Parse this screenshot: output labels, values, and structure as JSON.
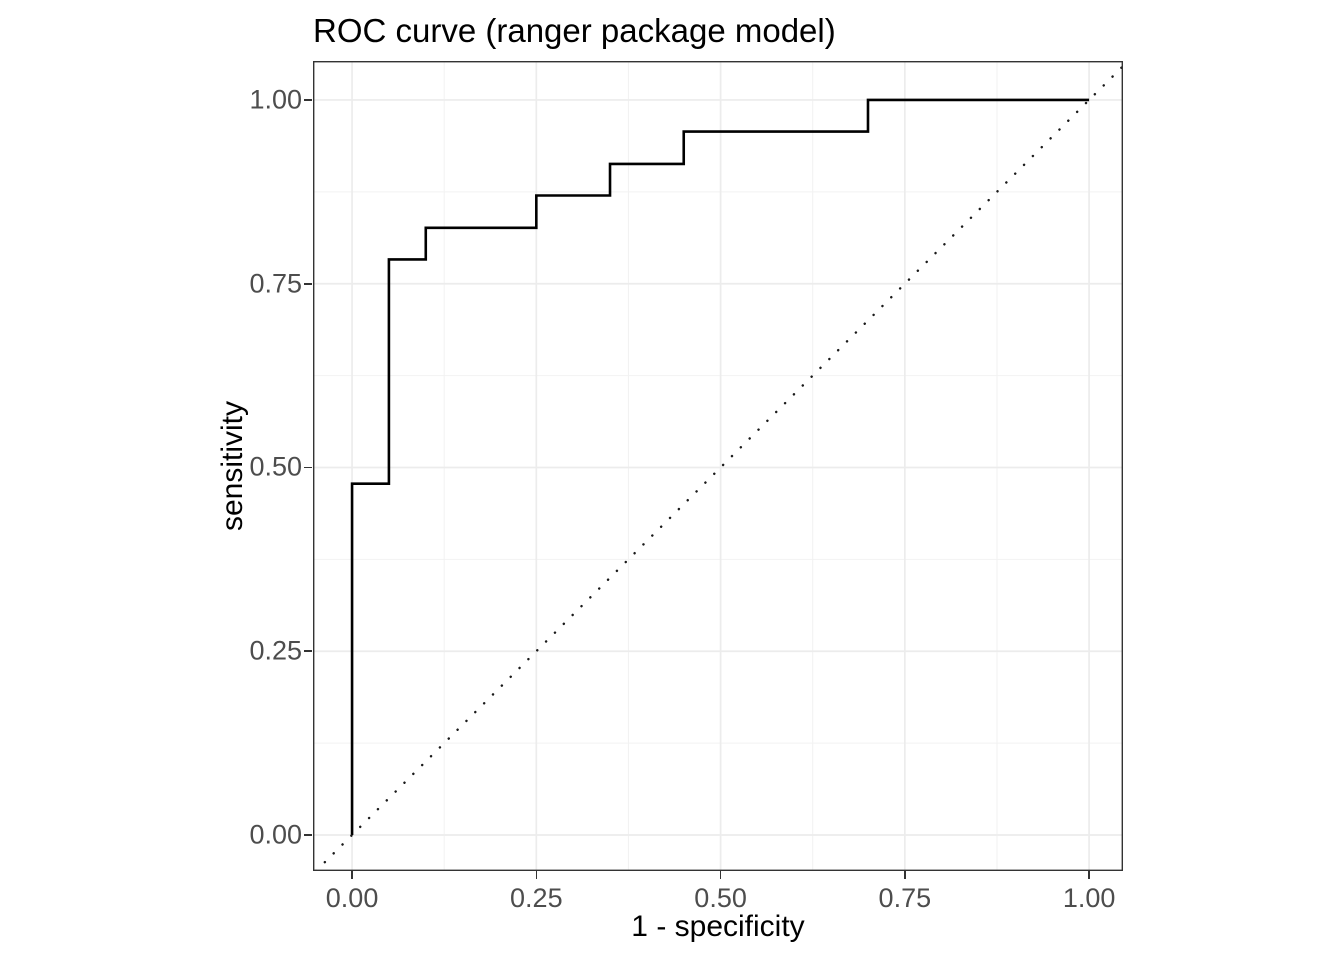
{
  "colors": {
    "background": "#FFFFFF",
    "panel_background": "#FFFFFF",
    "panel_border": "#333333",
    "grid_major": "#ECECEC",
    "grid_minor": "#F2F2F2",
    "tick_mark": "#333333",
    "tick_label": "#4D4D4D",
    "title_text": "#000000",
    "roc_line": "#000000",
    "diagonal_line": "#1A1A1A"
  },
  "chart_data": {
    "type": "line",
    "title": "ROC curve (ranger package model)",
    "xlabel": "1 - specificity",
    "ylabel": "sensitivity",
    "xlim": [
      -0.053,
      1.046
    ],
    "ylim": [
      -0.049,
      1.053
    ],
    "grid": "on",
    "legend": "none",
    "x_ticks": {
      "values": [
        0,
        0.25,
        0.5,
        0.75,
        1
      ],
      "labels": [
        "0.00",
        "0.25",
        "0.50",
        "0.75",
        "1.00"
      ]
    },
    "y_ticks": {
      "values": [
        0,
        0.25,
        0.5,
        0.75,
        1
      ],
      "labels": [
        "0.00",
        "0.25",
        "0.50",
        "0.75",
        "1.00"
      ]
    },
    "minor_x": [
      0.125,
      0.375,
      0.625,
      0.875
    ],
    "minor_y": [
      0.125,
      0.375,
      0.625,
      0.875
    ],
    "series": [
      {
        "name": "roc-step-curve",
        "linetype": "solid",
        "color": "#000000",
        "width": 2.6,
        "points": [
          [
            0,
            0
          ],
          [
            0,
            0.478
          ],
          [
            0.05,
            0.478
          ],
          [
            0.05,
            0.783
          ],
          [
            0.1,
            0.783
          ],
          [
            0.1,
            0.826
          ],
          [
            0.25,
            0.826
          ],
          [
            0.25,
            0.87
          ],
          [
            0.35,
            0.87
          ],
          [
            0.35,
            0.913
          ],
          [
            0.45,
            0.913
          ],
          [
            0.45,
            0.957
          ],
          [
            0.7,
            0.957
          ],
          [
            0.7,
            1
          ],
          [
            1,
            1
          ]
        ]
      },
      {
        "name": "chance-diagonal",
        "linetype": "dotted",
        "color": "#1A1A1A",
        "width": 2.4,
        "points": [
          [
            -0.049,
            -0.049
          ],
          [
            1.046,
            1.046
          ]
        ]
      }
    ]
  }
}
